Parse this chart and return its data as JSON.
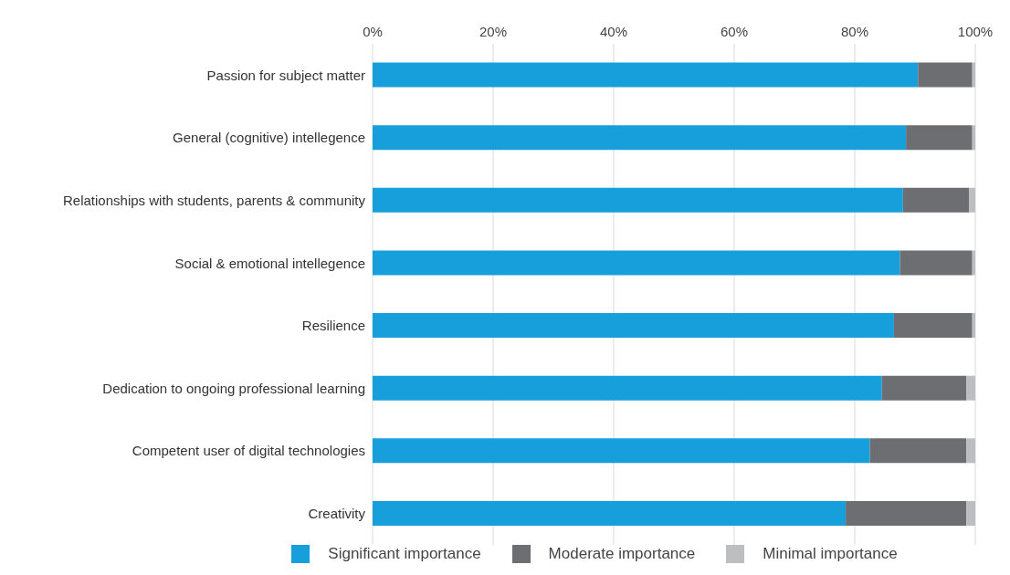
{
  "chart_data": {
    "type": "bar",
    "orientation": "horizontal",
    "stacked": true,
    "categories": [
      "Passion for subject matter",
      "General (cognitive) intellegence",
      "Relationships with students, parents & community",
      "Social & emotional intellegence",
      "Resilience",
      "Dedication to ongoing professional learning",
      "Competent user of digital technologies",
      "Creativity"
    ],
    "series": [
      {
        "name": "Significant importance",
        "color": "#169fdb",
        "values": [
          90.5,
          88.5,
          88,
          87.5,
          86.5,
          84.5,
          82.5,
          78.5
        ]
      },
      {
        "name": "Moderate importance",
        "color": "#6d6e71",
        "values": [
          9,
          11,
          11,
          12,
          13,
          14,
          16,
          20
        ]
      },
      {
        "name": "Minimal importance",
        "color": "#bcbec0",
        "values": [
          0.5,
          0.5,
          1,
          0.5,
          0.5,
          1.5,
          1.5,
          1.5
        ]
      }
    ],
    "xlim": [
      0,
      100
    ],
    "xticks": [
      {
        "value": 0,
        "label": "0%"
      },
      {
        "value": 20,
        "label": "20%"
      },
      {
        "value": 40,
        "label": "40%"
      },
      {
        "value": 60,
        "label": "60%"
      },
      {
        "value": 80,
        "label": "80%"
      },
      {
        "value": 100,
        "label": "100%"
      }
    ],
    "grid": "x",
    "legend": "bottom"
  }
}
